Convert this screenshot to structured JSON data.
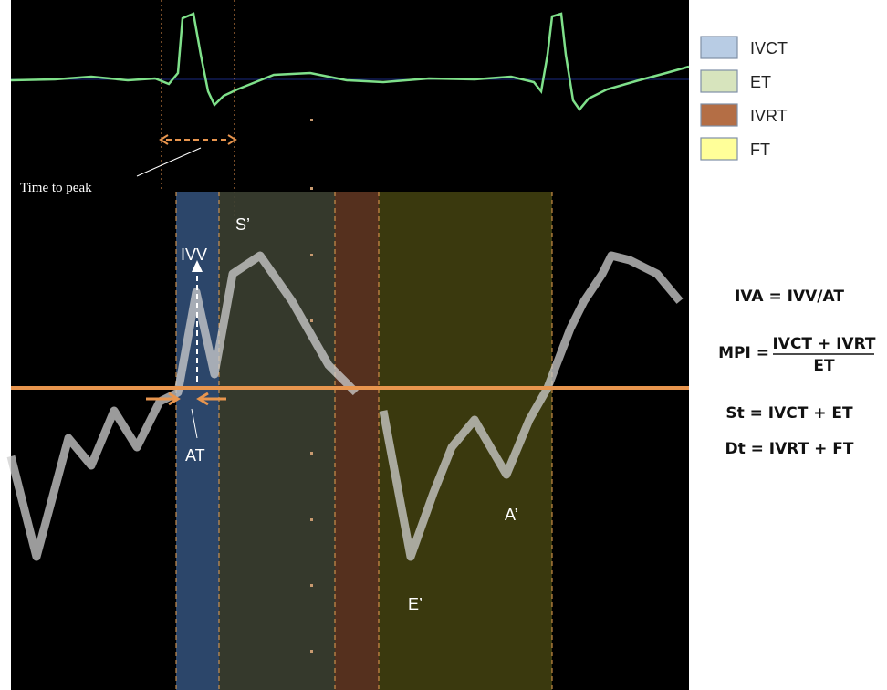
{
  "legend": {
    "items": [
      {
        "label": "IVCT",
        "color": "#b8cce4"
      },
      {
        "label": "ET",
        "color": "#d7e4bd"
      },
      {
        "label": "IVRT",
        "color": "#b46e45"
      },
      {
        "label": "FT",
        "color": "#ffff99"
      }
    ]
  },
  "annotations": {
    "time_to_peak": "Time to peak",
    "s_prime": "S’",
    "ivv": "IVV",
    "at": "AT",
    "e_prime": "E’",
    "a_prime": "A’"
  },
  "formulas": {
    "iva": "IVA = IVV/AT",
    "mpi": {
      "lhs": "MPI =",
      "numerator": "IVCT + IVRT",
      "denominator": "ET"
    },
    "st": "St = IVCT + ET",
    "dt": "Dt = IVRT + FT"
  }
}
